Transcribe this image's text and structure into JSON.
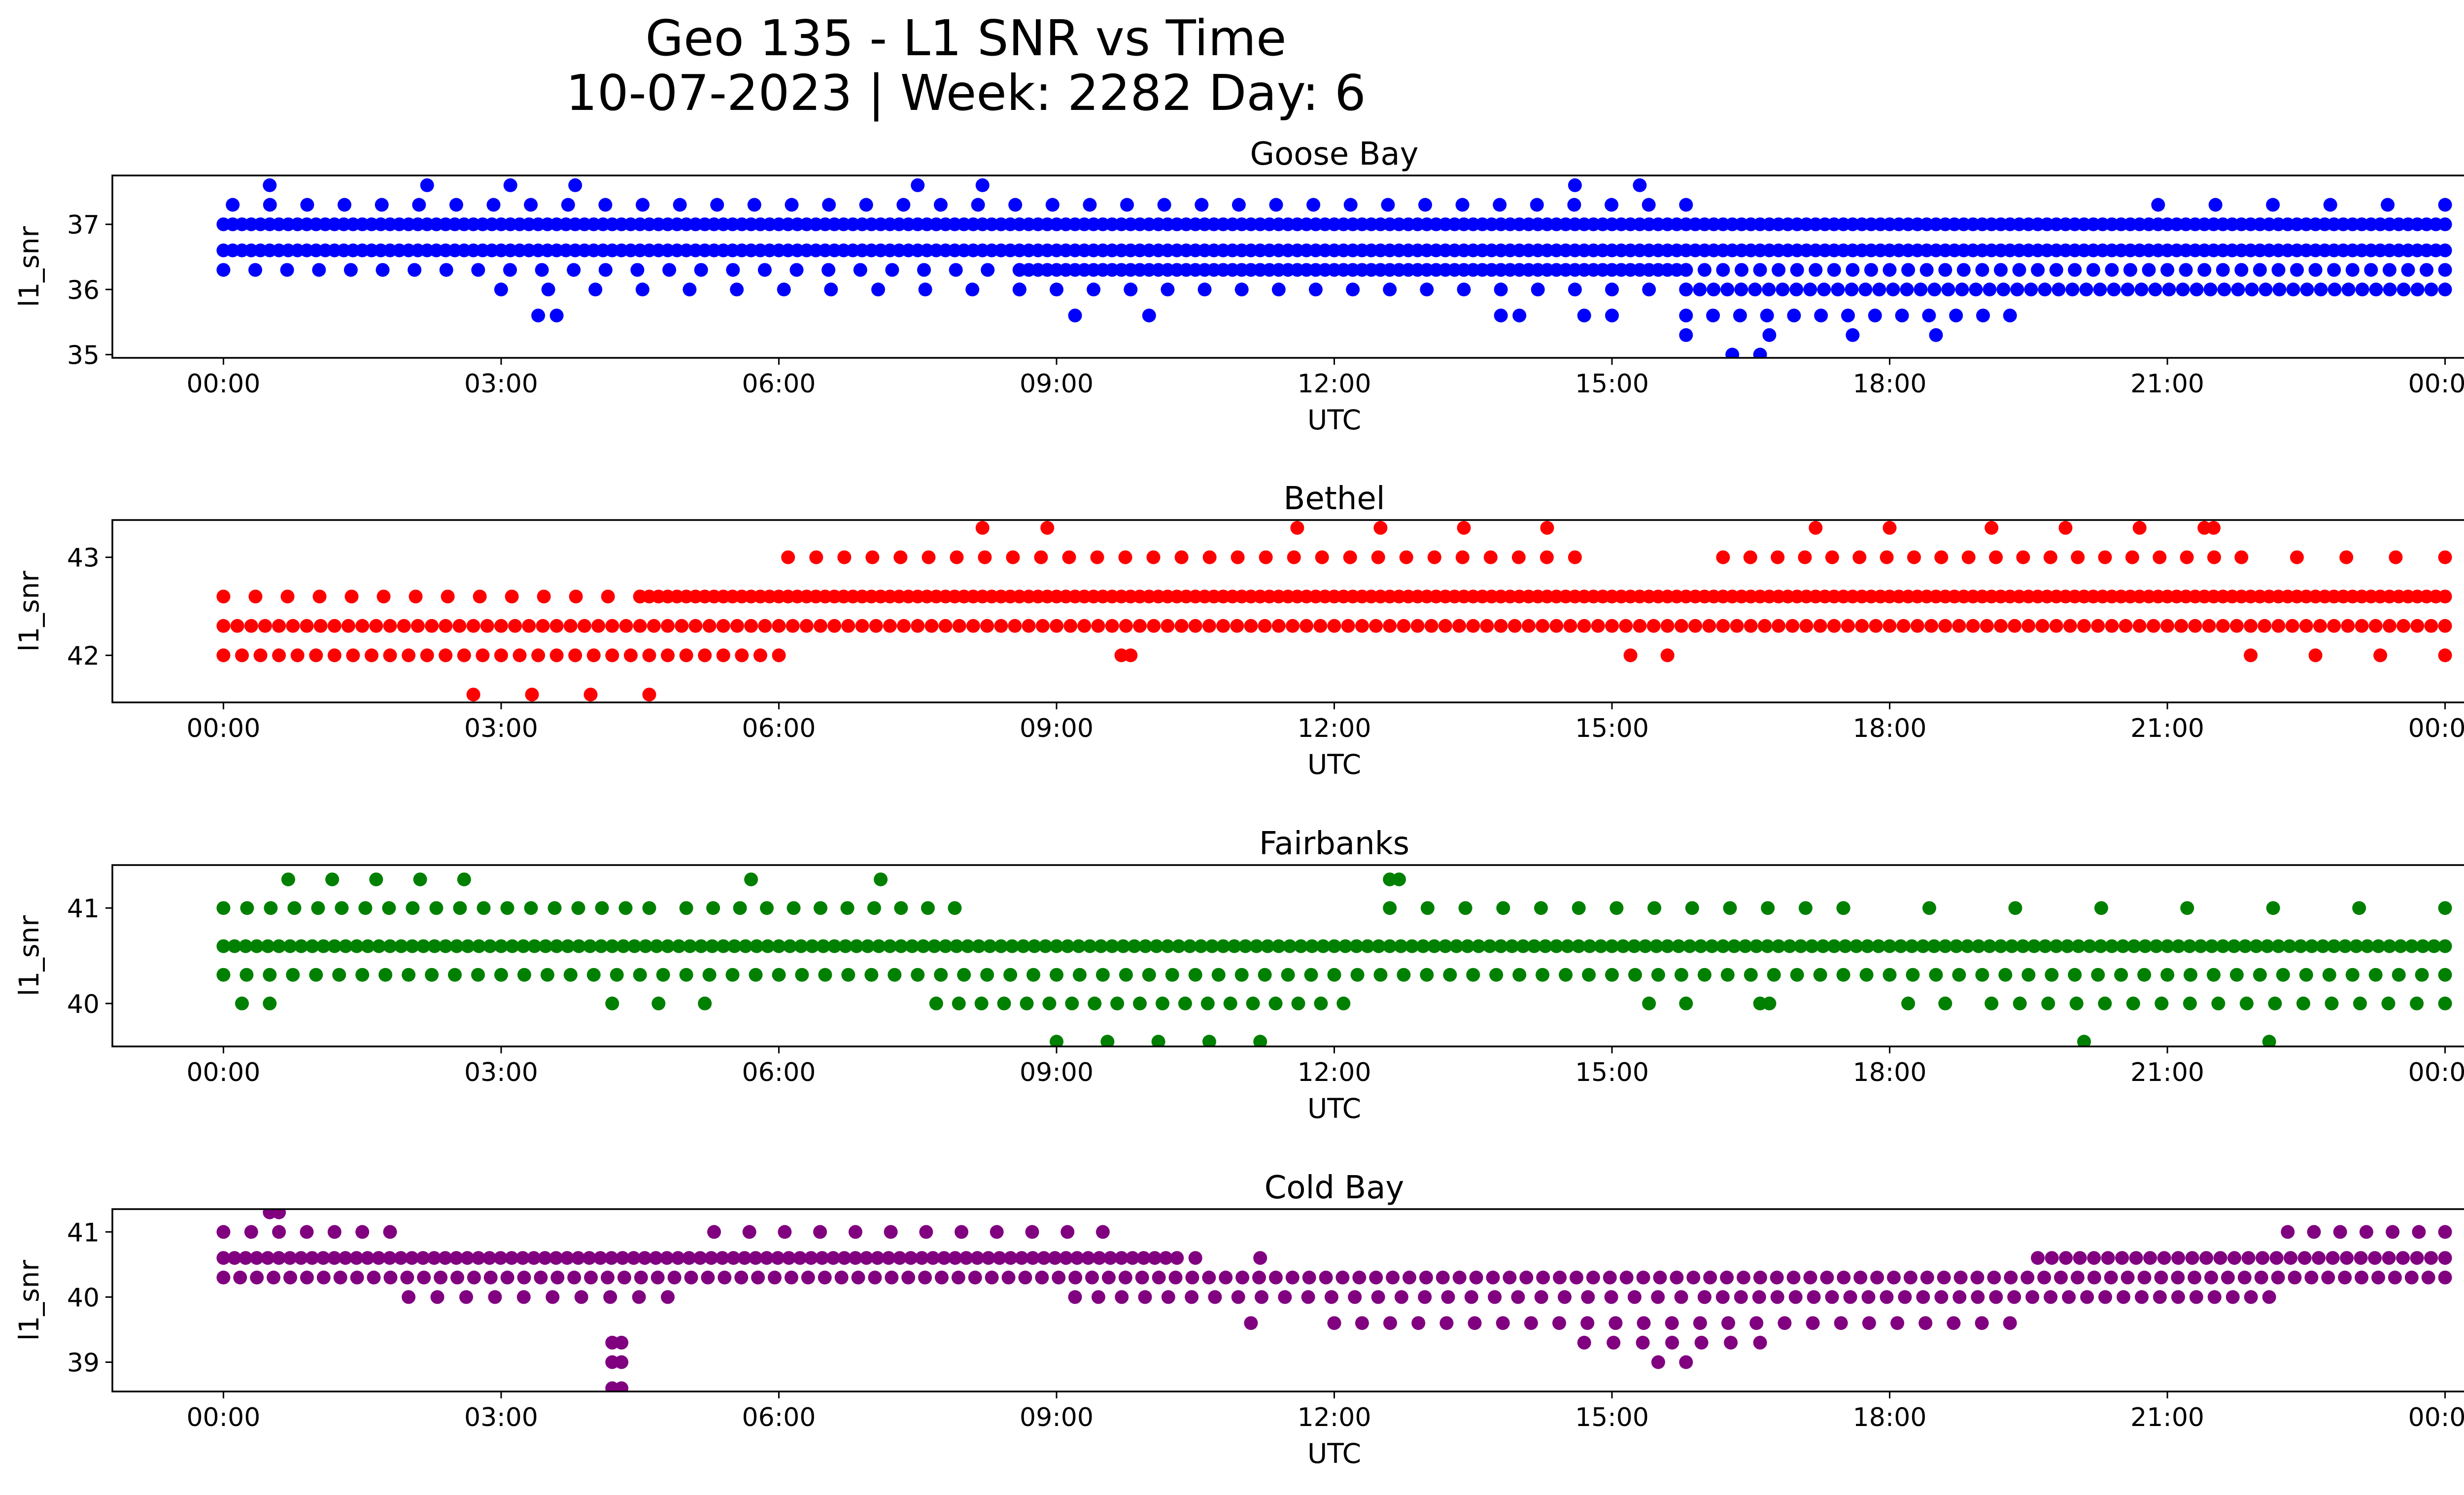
{
  "figure": {
    "title_line1": "Geo 135 - L1 SNR vs Time",
    "title_line2": "10-07-2023 | Week: 2282 Day: 6"
  },
  "chart_data": [
    {
      "type": "scatter",
      "title": "Goose Bay",
      "xlabel": "UTC",
      "ylabel": "l1_snr",
      "color": "#0000ff",
      "xlim": [
        -1.2,
        25.2
      ],
      "ylim": [
        34.95,
        37.75
      ],
      "xticks": [
        "00:00",
        "03:00",
        "06:00",
        "09:00",
        "12:00",
        "15:00",
        "18:00",
        "21:00",
        "00:00"
      ],
      "yticks": [
        35,
        36,
        37
      ],
      "levels": [
        35.0,
        35.3,
        35.6,
        36.0,
        36.3,
        36.6,
        37.0,
        37.3,
        37.6
      ],
      "series": [
        {
          "name": "Goose Bay",
          "segments": [
            [
              0.0,
              24.0,
              36.6,
              0.1
            ],
            [
              0.0,
              24.0,
              37.0,
              0.1
            ],
            [
              0.0,
              8.6,
              36.3,
              0.35
            ],
            [
              8.6,
              15.8,
              36.3,
              0.1
            ],
            [
              15.8,
              24.0,
              36.3,
              0.2
            ],
            [
              0.1,
              15.8,
              37.3,
              0.4
            ],
            [
              20.9,
              24.0,
              37.3,
              0.6
            ],
            [
              3.0,
              8.6,
              36.0,
              0.5
            ],
            [
              8.6,
              15.8,
              36.0,
              0.4
            ],
            [
              15.8,
              24.0,
              36.0,
              0.15
            ],
            [
              15.8,
              19.3,
              35.6,
              0.3
            ],
            [
              15.8,
              18.5,
              35.3,
              0.9
            ],
            [
              0.5,
              2.2,
              37.6,
              2.0
            ],
            [
              3.1,
              3.8,
              37.6,
              2.0
            ],
            [
              7.5,
              8.2,
              37.6,
              2.0
            ],
            [
              14.6,
              15.3,
              37.6,
              2.0
            ],
            [
              3.4,
              3.6,
              35.6,
              2.0
            ],
            [
              9.2,
              10.0,
              35.6,
              1.3
            ],
            [
              13.8,
              14.0,
              35.6,
              2.0
            ],
            [
              14.7,
              15.0,
              35.6,
              2.0
            ],
            [
              16.3,
              16.6,
              35.0,
              2.0
            ]
          ]
        }
      ]
    },
    {
      "type": "scatter",
      "title": "Bethel",
      "xlabel": "UTC",
      "ylabel": "l1_snr",
      "color": "#ff0000",
      "xlim": [
        -1.2,
        25.2
      ],
      "ylim": [
        41.52,
        43.38
      ],
      "xticks": [
        "00:00",
        "03:00",
        "06:00",
        "09:00",
        "12:00",
        "15:00",
        "18:00",
        "21:00",
        "00:00"
      ],
      "yticks": [
        42,
        43
      ],
      "levels": [
        41.6,
        42.0,
        42.3,
        42.6,
        43.0,
        43.3
      ],
      "series": [
        {
          "name": "Bethel",
          "segments": [
            [
              0.0,
              6.0,
              42.0,
              0.2
            ],
            [
              0.0,
              24.0,
              42.3,
              0.15
            ],
            [
              0.0,
              4.5,
              42.6,
              0.35
            ],
            [
              4.5,
              24.0,
              42.6,
              0.1
            ],
            [
              6.1,
              14.6,
              43.0,
              0.3
            ],
            [
              16.2,
              21.8,
              43.0,
              0.3
            ],
            [
              22.4,
              24.0,
              43.0,
              0.6
            ],
            [
              2.7,
              4.6,
              41.6,
              0.6
            ],
            [
              9.7,
              9.8,
              42.0,
              2.0
            ],
            [
              15.2,
              15.6,
              42.0,
              2.0
            ],
            [
              21.9,
              24.0,
              42.0,
              0.7
            ],
            [
              8.2,
              8.9,
              43.3,
              1.2
            ],
            [
              11.6,
              14.3,
              43.3,
              0.9
            ],
            [
              17.2,
              18.0,
              43.3,
              1.2
            ],
            [
              19.1,
              20.7,
              43.3,
              0.9
            ],
            [
              21.4,
              21.5,
              43.3,
              2.0
            ]
          ]
        }
      ]
    },
    {
      "type": "scatter",
      "title": "Fairbanks",
      "xlabel": "UTC",
      "ylabel": "l1_snr",
      "color": "#008000",
      "xlim": [
        -1.2,
        25.2
      ],
      "ylim": [
        39.55,
        41.45
      ],
      "xticks": [
        "00:00",
        "03:00",
        "06:00",
        "09:00",
        "12:00",
        "15:00",
        "18:00",
        "21:00",
        "00:00"
      ],
      "yticks": [
        40,
        41
      ],
      "levels": [
        39.6,
        40.0,
        40.3,
        40.6,
        41.0,
        41.3
      ],
      "series": [
        {
          "name": "Fairbanks",
          "segments": [
            [
              0.0,
              24.0,
              40.6,
              0.12
            ],
            [
              0.0,
              24.0,
              40.3,
              0.25
            ],
            [
              0.0,
              4.6,
              41.0,
              0.25
            ],
            [
              5.0,
              7.9,
              41.0,
              0.3
            ],
            [
              12.6,
              17.5,
              41.0,
              0.4
            ],
            [
              17.5,
              24.0,
              41.0,
              0.9
            ],
            [
              0.2,
              0.5,
              40.0,
              2.0
            ],
            [
              4.2,
              5.2,
              40.0,
              0.6
            ],
            [
              7.7,
              12.1,
              40.0,
              0.25
            ],
            [
              15.4,
              15.8,
              40.0,
              2.0
            ],
            [
              16.6,
              16.7,
              40.0,
              2.0
            ],
            [
              18.2,
              18.6,
              40.0,
              2.0
            ],
            [
              19.1,
              24.0,
              40.0,
              0.3
            ],
            [
              9.0,
              11.2,
              39.6,
              0.5
            ],
            [
              20.1,
              22.1,
              39.6,
              1.5
            ],
            [
              0.7,
              2.6,
              41.3,
              0.5
            ],
            [
              5.7,
              7.1,
              41.3,
              1.0
            ],
            [
              12.6,
              12.7,
              41.3,
              2.0
            ]
          ]
        }
      ]
    },
    {
      "type": "scatter",
      "title": "Cold Bay",
      "xlabel": "UTC",
      "ylabel": "l1_snr",
      "color": "#800080",
      "xlim": [
        -1.2,
        25.2
      ],
      "ylim": [
        38.55,
        41.35
      ],
      "xticks": [
        "00:00",
        "03:00",
        "06:00",
        "09:00",
        "12:00",
        "15:00",
        "18:00",
        "21:00",
        "00:00"
      ],
      "yticks": [
        39,
        40,
        41
      ],
      "levels": [
        38.6,
        39.0,
        39.3,
        39.6,
        40.0,
        40.3,
        40.6,
        41.0,
        41.3
      ],
      "series": [
        {
          "name": "Cold Bay",
          "segments": [
            [
              0.0,
              10.3,
              40.6,
              0.12
            ],
            [
              10.5,
              11.2,
              40.6,
              1.0
            ],
            [
              19.6,
              24.0,
              40.6,
              0.15
            ],
            [
              0.0,
              24.0,
              40.3,
              0.18
            ],
            [
              0.0,
              1.8,
              41.0,
              0.3
            ],
            [
              5.3,
              9.5,
              41.0,
              0.4
            ],
            [
              22.3,
              24.0,
              41.0,
              0.3
            ],
            [
              2.0,
              4.8,
              40.0,
              0.3
            ],
            [
              9.2,
              16.0,
              40.0,
              0.25
            ],
            [
              16.0,
              22.1,
              40.0,
              0.2
            ],
            [
              11.1,
              12.0,
              39.6,
              1.5
            ],
            [
              12.3,
              19.3,
              39.6,
              0.3
            ],
            [
              14.7,
              16.6,
              39.3,
              0.3
            ],
            [
              4.2,
              4.3,
              39.3,
              2.0
            ],
            [
              4.2,
              4.3,
              39.0,
              2.0
            ],
            [
              4.2,
              4.3,
              38.6,
              2.0
            ],
            [
              15.5,
              15.8,
              39.0,
              2.0
            ],
            [
              0.5,
              0.6,
              41.3,
              2.0
            ]
          ]
        }
      ]
    }
  ]
}
